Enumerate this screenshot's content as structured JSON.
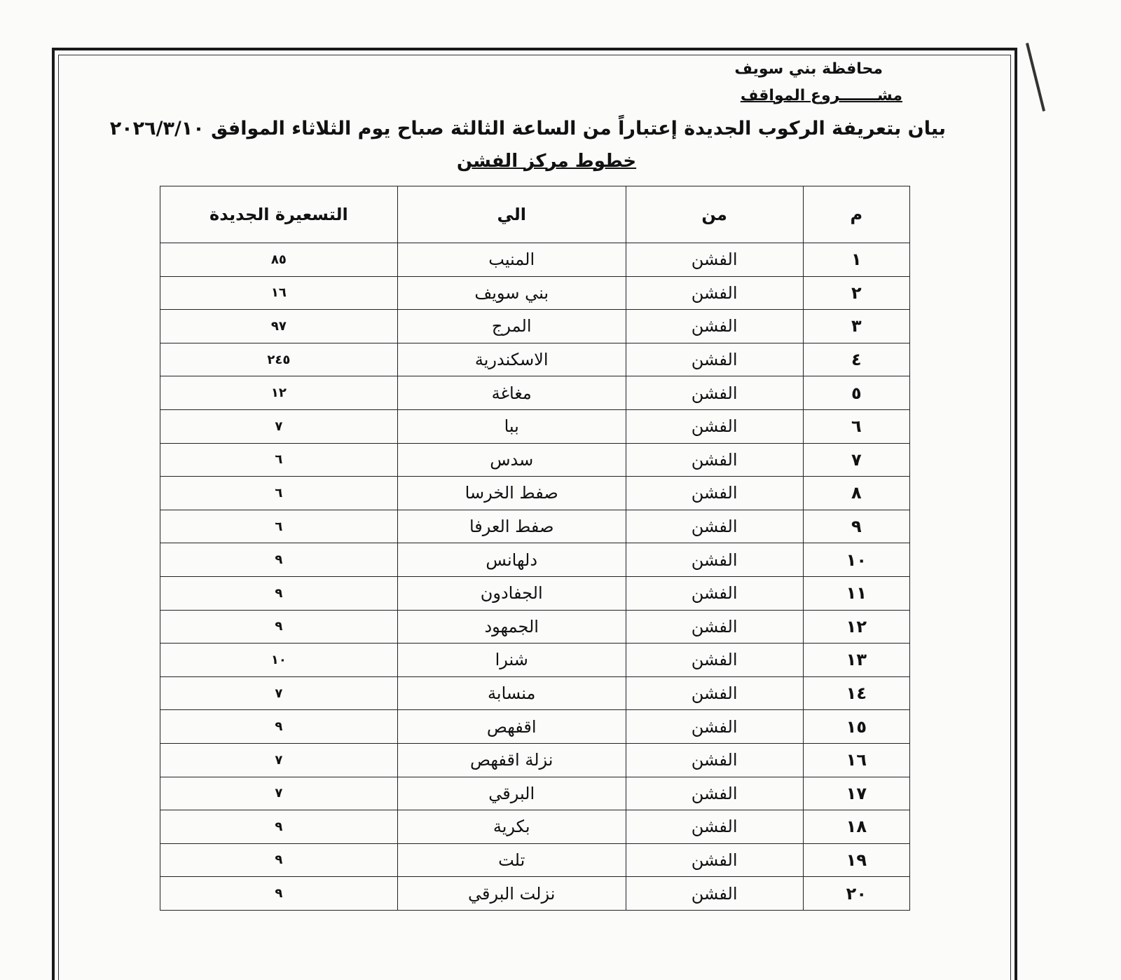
{
  "header": {
    "governorate": "محافظة بني سويف",
    "project": "مشـــــــروع المواقف",
    "title": "بيان بتعريفة الركوب الجديدة إعتباراً من الساعة الثالثة صباح يوم الثلاثاء الموافق ٢٠٢٦/٣/١٠",
    "subtitle": "خطوط مركز الفشن"
  },
  "table": {
    "columns": [
      "م",
      "من",
      "الي",
      "التسعيرة الجديدة"
    ],
    "rows": [
      {
        "n": "١",
        "from": "الفشن",
        "to": "المنيب",
        "price": "٨٥"
      },
      {
        "n": "٢",
        "from": "الفشن",
        "to": "بني سويف",
        "price": "١٦"
      },
      {
        "n": "٣",
        "from": "الفشن",
        "to": "المرج",
        "price": "٩٧"
      },
      {
        "n": "٤",
        "from": "الفشن",
        "to": "الاسكندرية",
        "price": "٢٤٥"
      },
      {
        "n": "٥",
        "from": "الفشن",
        "to": "مغاغة",
        "price": "١٢"
      },
      {
        "n": "٦",
        "from": "الفشن",
        "to": "ببا",
        "price": "٧"
      },
      {
        "n": "٧",
        "from": "الفشن",
        "to": "سدس",
        "price": "٦"
      },
      {
        "n": "٨",
        "from": "الفشن",
        "to": "صفط الخرسا",
        "price": "٦"
      },
      {
        "n": "٩",
        "from": "الفشن",
        "to": "صفط العرفا",
        "price": "٦"
      },
      {
        "n": "١٠",
        "from": "الفشن",
        "to": "دلهانس",
        "price": "٩"
      },
      {
        "n": "١١",
        "from": "الفشن",
        "to": "الجفادون",
        "price": "٩"
      },
      {
        "n": "١٢",
        "from": "الفشن",
        "to": "الجمهود",
        "price": "٩"
      },
      {
        "n": "١٣",
        "from": "الفشن",
        "to": "شنرا",
        "price": "١٠"
      },
      {
        "n": "١٤",
        "from": "الفشن",
        "to": "منسابة",
        "price": "٧"
      },
      {
        "n": "١٥",
        "from": "الفشن",
        "to": "اقفهص",
        "price": "٩"
      },
      {
        "n": "١٦",
        "from": "الفشن",
        "to": "نزلة اقفهص",
        "price": "٧"
      },
      {
        "n": "١٧",
        "from": "الفشن",
        "to": "البرقي",
        "price": "٧"
      },
      {
        "n": "١٨",
        "from": "الفشن",
        "to": "بكرية",
        "price": "٩"
      },
      {
        "n": "١٩",
        "from": "الفشن",
        "to": "تلت",
        "price": "٩"
      },
      {
        "n": "٢٠",
        "from": "الفشن",
        "to": "نزلت البرقي",
        "price": "٩"
      }
    ]
  }
}
